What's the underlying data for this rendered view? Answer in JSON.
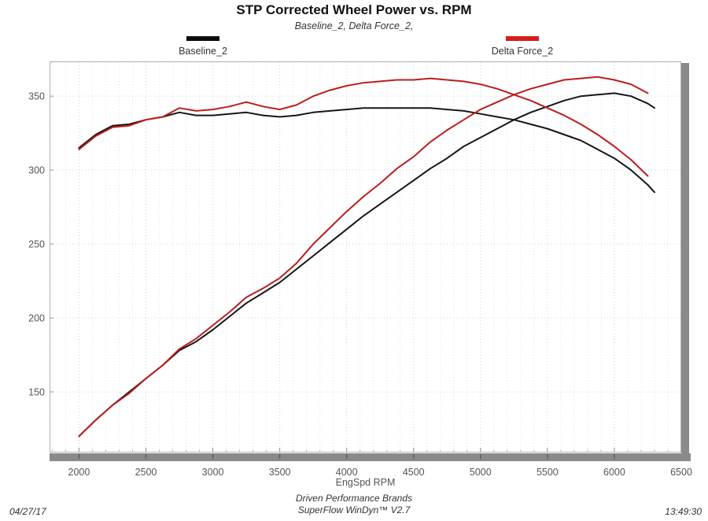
{
  "header": {
    "title": "STP Corrected Wheel Power vs. RPM",
    "subtitle": "Baseline_2, Delta Force_2,"
  },
  "footer": {
    "date": "04/27/17",
    "brand": "Driven Performance Brands",
    "software": "SuperFlow WinDyn™ V2.7",
    "time": "13:49:30"
  },
  "colors": {
    "baseline_curve": "#161616",
    "baseline_swatch": "#0d0d0d",
    "delta_curve": "#ba1e1e",
    "delta_swatch": "#d91c1c",
    "grid_minor": "#e2e2e2",
    "grid_major": "#d0d0d0",
    "shadow_bar": "#8a8a8a",
    "plot_border": "#b0b0b0",
    "tick_text": "#555555"
  },
  "chart_data": {
    "type": "line",
    "title": "STP Corrected Wheel Power vs. RPM",
    "subtitle": "Baseline_2, Delta Force_2,",
    "xlabel": "EngSpd RPM",
    "ylabel": "",
    "xlim": [
      1780,
      6500
    ],
    "ylim": [
      109,
      373.5
    ],
    "x_ticks": [
      2000,
      2500,
      3000,
      3500,
      4000,
      4500,
      5000,
      5500,
      6000,
      6500
    ],
    "x_minor_step": 100,
    "y_ticks": [
      150,
      200,
      250,
      300,
      350
    ],
    "grid": {
      "vertical_minor_dotted": true,
      "horizontal_major_dotted": true
    },
    "legend_position": "top",
    "series": [
      {
        "name": "Baseline_2",
        "color": "#161616",
        "legend_swatch": "#0d0d0d",
        "rpm": [
          2000,
          2125,
          2250,
          2375,
          2500,
          2625,
          2750,
          2875,
          3000,
          3125,
          3250,
          3375,
          3500,
          3625,
          3750,
          3875,
          4000,
          4125,
          4250,
          4375,
          4500,
          4625,
          4750,
          4875,
          5000,
          5125,
          5250,
          5375,
          5500,
          5625,
          5750,
          5875,
          6000,
          6125,
          6250,
          6300
        ],
        "torque": [
          315,
          324,
          330,
          331,
          334,
          336,
          339,
          337,
          337,
          338,
          339,
          337,
          336,
          337,
          339,
          340,
          341,
          342,
          342,
          342,
          342,
          342,
          341,
          340,
          338,
          336,
          334,
          331,
          328,
          324,
          320,
          314,
          308,
          300,
          290,
          285
        ],
        "power": [
          120,
          131,
          141,
          150,
          159,
          168,
          178,
          184,
          192,
          201,
          210,
          217,
          224,
          233,
          242,
          251,
          260,
          269,
          277,
          285,
          293,
          301,
          308,
          316,
          322,
          328,
          334,
          339,
          343,
          347,
          350,
          351,
          352,
          350,
          345,
          342
        ]
      },
      {
        "name": "Delta Force_2",
        "color": "#ba1e1e",
        "legend_swatch": "#d91c1c",
        "rpm": [
          2000,
          2125,
          2250,
          2375,
          2500,
          2625,
          2750,
          2875,
          3000,
          3125,
          3250,
          3375,
          3500,
          3625,
          3750,
          3875,
          4000,
          4125,
          4250,
          4375,
          4500,
          4625,
          4750,
          4875,
          5000,
          5125,
          5250,
          5375,
          5500,
          5625,
          5750,
          5875,
          6000,
          6125,
          6250
        ],
        "torque": [
          314,
          323,
          329,
          330,
          334,
          336,
          342,
          340,
          341,
          343,
          346,
          343,
          341,
          344,
          350,
          354,
          357,
          359,
          360,
          361,
          361,
          362,
          361,
          360,
          358,
          355,
          351,
          347,
          342,
          337,
          331,
          324,
          316,
          307,
          296
        ],
        "power": [
          120,
          131,
          141,
          149,
          159,
          168,
          179,
          186,
          195,
          204,
          214,
          220,
          227,
          237,
          250,
          261,
          272,
          282,
          291,
          301,
          309,
          319,
          327,
          334,
          341,
          346,
          351,
          355,
          358,
          361,
          362,
          363,
          361,
          358,
          352
        ]
      }
    ]
  }
}
